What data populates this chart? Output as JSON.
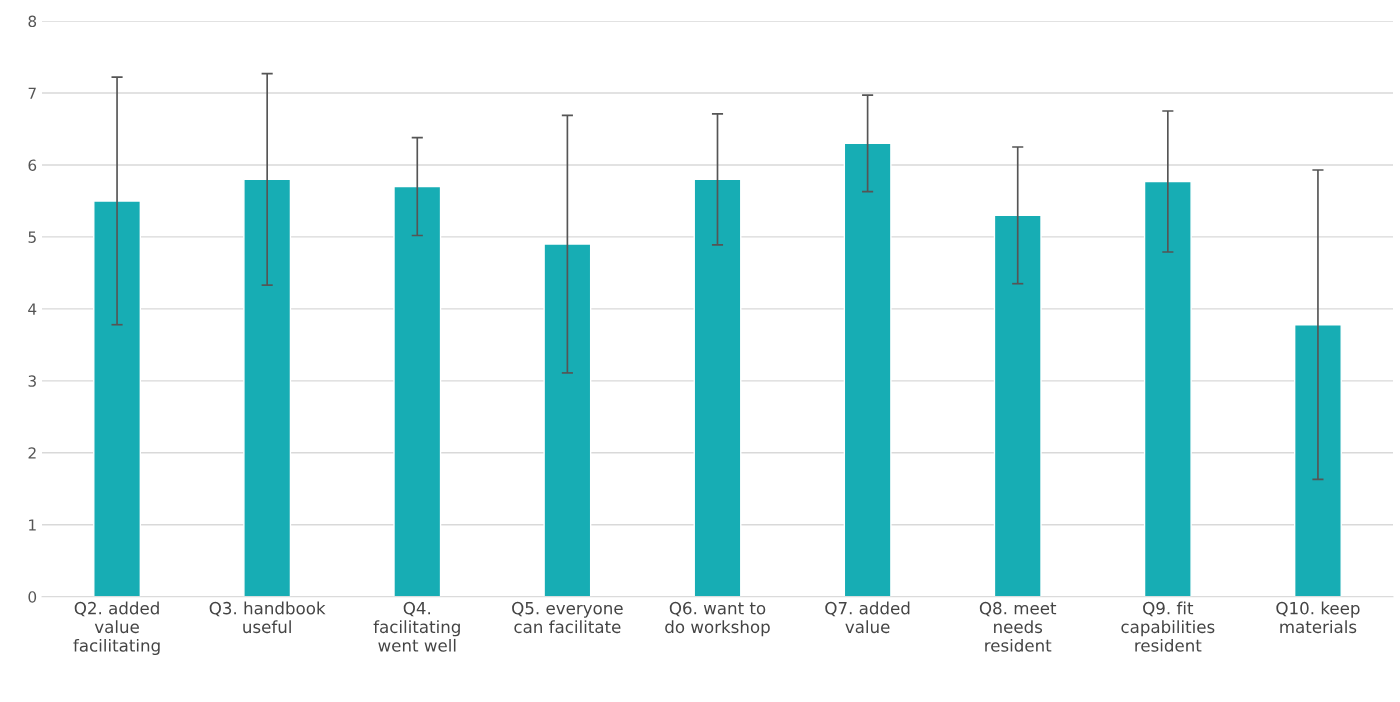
{
  "chart_data": {
    "type": "bar",
    "categories": [
      "Q2. added\nvalue\nfacilitating",
      "Q3. handbook\nuseful",
      "Q4.\nfacilitating\nwent well",
      "Q5. everyone\ncan facilitate",
      "Q6. want to\ndo workshop",
      "Q7. added\nvalue",
      "Q8. meet\nneeds\nresident",
      "Q9. fit\ncapabilities\nresident",
      "Q10. keep\nmaterials"
    ],
    "values": [
      5.5,
      5.8,
      5.7,
      4.9,
      5.8,
      6.3,
      5.3,
      5.77,
      3.78
    ],
    "errors": [
      1.72,
      1.47,
      0.68,
      1.79,
      0.91,
      0.67,
      0.95,
      0.98,
      2.15
    ],
    "color": "#17adb4",
    "ylim": [
      0,
      8
    ],
    "yticks": [
      0,
      1,
      2,
      3,
      4,
      5,
      6,
      7,
      8
    ],
    "grid": "y",
    "legend": false
  }
}
